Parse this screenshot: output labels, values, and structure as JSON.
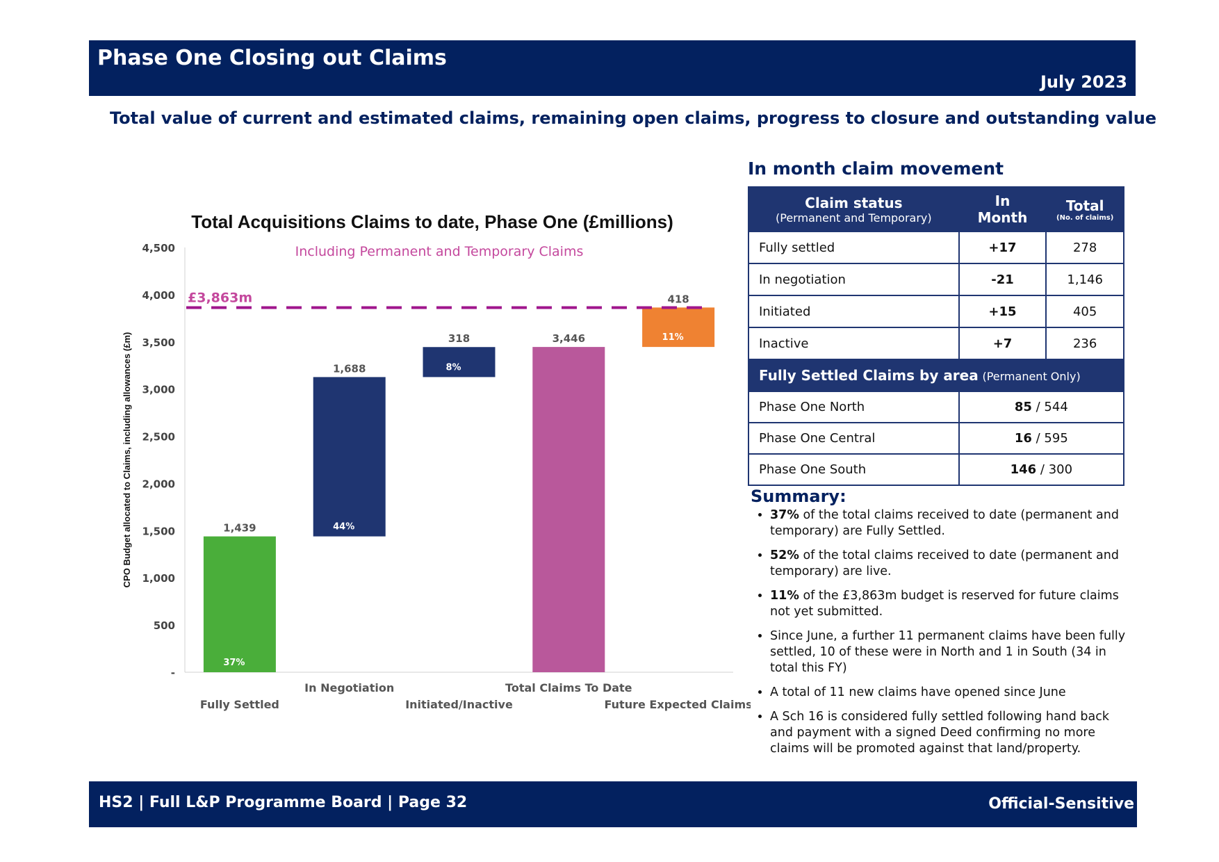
{
  "header": {
    "title": "Phase One Closing out Claims",
    "date": "July 2023"
  },
  "subtitle": "Total value of current and estimated claims, remaining open claims, progress to closure and outstanding value",
  "chart_data": {
    "type": "bar",
    "title": "Total Acquisitions Claims to date, Phase One (£millions)",
    "subtitle": "Including Permanent and Temporary Claims",
    "ylabel": "CPO Budget allocated to Claims, including allowances (£m)",
    "ylim": [
      0,
      4500
    ],
    "yticks": [
      "-",
      "500",
      "1,000",
      "1,500",
      "2,000",
      "2,500",
      "3,000",
      "3,500",
      "4,000",
      "4,500"
    ],
    "budget_line": {
      "value": 3863,
      "label": "£3,863m",
      "color": "#a0168c"
    },
    "categories": [
      "Fully Settled",
      "In Negotiation",
      "Initiated/Inactive",
      "Total Claims To Date",
      "Future Expected Claims"
    ],
    "bars": [
      {
        "category": "Fully Settled",
        "base": 0,
        "value": 1439,
        "label": "1,439",
        "pct": "37%",
        "color": "#4aae3a"
      },
      {
        "category": "In Negotiation",
        "base": 1439,
        "value": 1688,
        "label": "1,688",
        "pct": "44%",
        "color": "#1f3571"
      },
      {
        "category": "Initiated/Inactive",
        "base": 3127,
        "value": 318,
        "label": "318",
        "pct": "8%",
        "color": "#1f3571"
      },
      {
        "category": "Total Claims To Date",
        "base": 0,
        "value": 3446,
        "label": "3,446",
        "pct": "",
        "color": "#b9589b"
      },
      {
        "category": "Future Expected Claims",
        "base": 3446,
        "value": 418,
        "label": "418",
        "pct": "11%",
        "color": "#ef8232"
      }
    ]
  },
  "movement": {
    "title": "In month claim movement",
    "headers": {
      "status": "Claim status",
      "status_sub": "(Permanent and Temporary)",
      "in_month_1": "In",
      "in_month_2": "Month",
      "total": "Total",
      "total_sub": "(No. of claims)"
    },
    "rows": [
      {
        "status": "Fully settled",
        "in_month": "+17",
        "total": "278"
      },
      {
        "status": "In negotiation",
        "in_month": "-21",
        "total": "1,146"
      },
      {
        "status": "Initiated",
        "in_month": "+15",
        "total": "405"
      },
      {
        "status": "Inactive",
        "in_month": "+7",
        "total": "236"
      }
    ],
    "area_header": "Fully Settled Claims by area",
    "area_header_sub": "(Permanent Only)",
    "areas": [
      {
        "name": "Phase One North",
        "settled": "85",
        "total": "/ 544"
      },
      {
        "name": "Phase One Central",
        "settled": "16",
        "total": "/ 595"
      },
      {
        "name": "Phase One South",
        "settled": "146",
        "total": "/ 300"
      }
    ]
  },
  "summary": {
    "title": "Summary:",
    "items": [
      {
        "bold": "37%",
        "text": " of the total claims received to date (permanent and temporary) are Fully Settled."
      },
      {
        "bold": "52%",
        "text": " of the total claims received to date (permanent and temporary) are live."
      },
      {
        "bold": "11%",
        "text": " of the £3,863m budget is reserved for future claims not yet submitted."
      },
      {
        "bold": "",
        "text": "Since June, a further 11 permanent claims have been fully settled, 10 of these were in North and 1 in South (34 in total this FY)"
      },
      {
        "bold": "",
        "text": "A total of 11 new claims have opened since June"
      },
      {
        "bold": "",
        "text": "A Sch 16 is considered fully settled following hand back and payment with a signed Deed confirming no more claims will be promoted against that land/property."
      }
    ]
  },
  "footer": {
    "left": "HS2 | Full L&P Programme Board | Page  32",
    "right": "Official-Sensitive"
  }
}
